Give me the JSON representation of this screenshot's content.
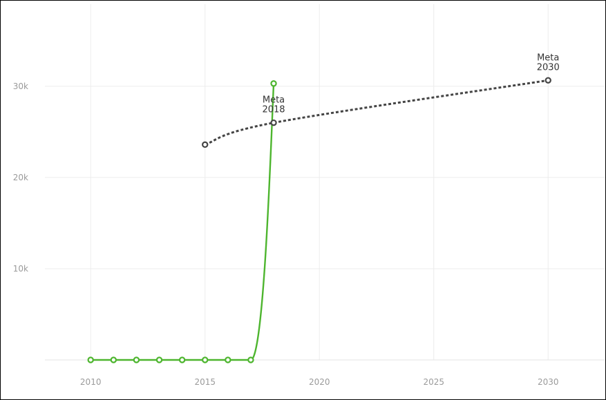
{
  "chart_data": {
    "type": "line",
    "title": "",
    "xlabel": "",
    "ylabel": "",
    "xlim": [
      2008,
      2032.5
    ],
    "ylim": [
      0,
      39000
    ],
    "grid": true,
    "x_ticks": [
      2010,
      2015,
      2020,
      2025,
      2030
    ],
    "y_ticks": [
      {
        "value": 10000,
        "label": "10k"
      },
      {
        "value": 20000,
        "label": "20k"
      },
      {
        "value": 30000,
        "label": "30k"
      }
    ],
    "series": [
      {
        "color": "#4db52e",
        "style": "solid",
        "x": [
          2010,
          2011,
          2012,
          2013,
          2014,
          2015,
          2016,
          2017,
          2018
        ],
        "y": [
          0,
          0,
          0,
          0,
          0,
          0,
          0,
          0,
          30300
        ]
      },
      {
        "color": "#444444",
        "style": "dashed",
        "x": [
          2015,
          2018,
          2030
        ],
        "y": [
          23600,
          26000,
          30650
        ]
      }
    ],
    "annotations": [
      {
        "x": 2018,
        "y": 26000,
        "line1": "Meta",
        "line2": "2018"
      },
      {
        "x": 2030,
        "y": 30650,
        "line1": "Meta",
        "line2": "2030"
      }
    ]
  }
}
